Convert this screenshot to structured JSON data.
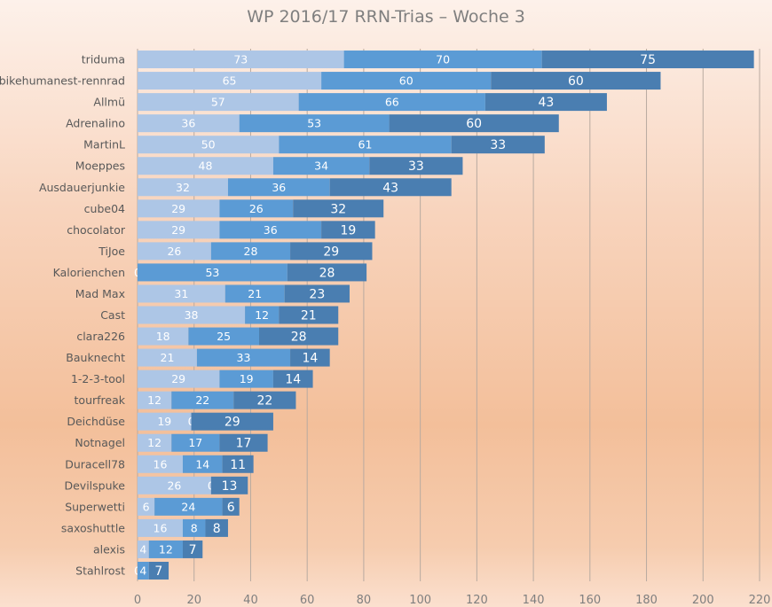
{
  "chart_data": {
    "type": "bar",
    "orientation": "horizontal",
    "stacked": true,
    "title": "WP 2016/17 RRN-Trias – Woche 3",
    "categories": [
      "triduma",
      "bikehumanest-rennrad",
      "Allmü",
      "Adrenalino",
      "MartinL",
      "Moeppes",
      "Ausdauerjunkie",
      "cube04",
      "chocolator",
      "TiJoe",
      "Kalorienchen",
      "Mad Max",
      "Cast",
      "clara226",
      "Bauknecht",
      "1-2-3-tool",
      "tourfreak",
      "Deichdüse",
      "Notnagel",
      "Duracell78",
      "Devilspuke",
      "Superwetti",
      "saxoshuttle",
      "alexis",
      "Stahlrost"
    ],
    "series": [
      {
        "values": [
          73,
          65,
          57,
          36,
          50,
          48,
          32,
          29,
          29,
          26,
          0,
          31,
          38,
          18,
          21,
          29,
          12,
          19,
          12,
          16,
          26,
          6,
          16,
          4,
          0
        ],
        "color": "#adc6e6"
      },
      {
        "values": [
          70,
          60,
          66,
          53,
          61,
          34,
          36,
          26,
          36,
          28,
          53,
          21,
          12,
          25,
          33,
          19,
          22,
          0,
          17,
          14,
          0,
          24,
          8,
          12,
          4
        ],
        "color": "#5b9bd5"
      },
      {
        "values": [
          75,
          60,
          43,
          60,
          33,
          33,
          43,
          32,
          19,
          29,
          28,
          23,
          21,
          28,
          14,
          14,
          22,
          29,
          17,
          11,
          13,
          6,
          8,
          7,
          7
        ],
        "color": "#4a7eb1"
      }
    ],
    "xlim": [
      0,
      220
    ],
    "xticks": [
      0,
      20,
      40,
      60,
      80,
      100,
      120,
      140,
      160,
      180,
      200,
      220
    ],
    "grid": true,
    "legend": "none"
  }
}
